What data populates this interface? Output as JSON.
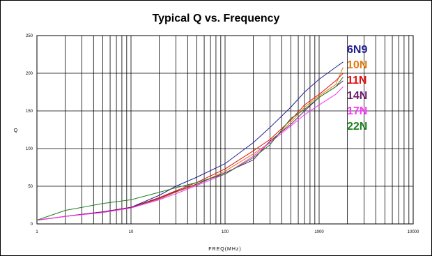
{
  "chart_data": {
    "type": "line",
    "title": "Typical Q vs. Frequency",
    "xlabel": "FREQ(MHz)",
    "ylabel": "Q",
    "x_scale": "log",
    "xlim": [
      1,
      10000
    ],
    "ylim": [
      0,
      250
    ],
    "x_tick_labels": [
      "1",
      "10",
      "100",
      "1000",
      "10000"
    ],
    "y_tick_labels": [
      "0",
      "50",
      "100",
      "150",
      "200",
      "250"
    ],
    "grid": true,
    "legend_placement": "top-right",
    "series": [
      {
        "name": "6N9",
        "color": "#1f1f8f",
        "x": [
          1,
          2,
          5,
          10,
          20,
          30,
          50,
          100,
          200,
          300,
          500,
          700,
          1000,
          1500,
          1800
        ],
        "y": [
          5,
          10,
          16,
          22,
          38,
          50,
          62,
          80,
          108,
          128,
          155,
          175,
          192,
          208,
          215
        ]
      },
      {
        "name": "10N",
        "color": "#e07a10",
        "x": [
          1,
          2,
          5,
          10,
          20,
          30,
          50,
          100,
          200,
          300,
          500,
          700,
          1000,
          1500,
          1800
        ],
        "y": [
          5,
          10,
          16,
          22,
          33,
          42,
          52,
          70,
          93,
          108,
          135,
          155,
          170,
          185,
          208
        ]
      },
      {
        "name": "11N",
        "color": "#e01010",
        "x": [
          1,
          2,
          5,
          10,
          20,
          30,
          50,
          100,
          200,
          300,
          500,
          700,
          1000,
          1500,
          1800
        ],
        "y": [
          5,
          10,
          16,
          22,
          35,
          44,
          55,
          73,
          97,
          112,
          138,
          158,
          172,
          190,
          200
        ]
      },
      {
        "name": "14N",
        "color": "#6a1f6a",
        "x": [
          1,
          2,
          5,
          10,
          20,
          30,
          50,
          100,
          200,
          300,
          500,
          700,
          1000,
          1500,
          1800
        ],
        "y": [
          5,
          10,
          16,
          22,
          34,
          43,
          53,
          68,
          85,
          110,
          132,
          150,
          168,
          182,
          190
        ]
      },
      {
        "name": "17N",
        "color": "#ff33ff",
        "x": [
          1,
          2,
          5,
          10,
          20,
          30,
          50,
          100,
          200,
          300,
          500,
          700,
          1000,
          1500,
          1800
        ],
        "y": [
          5,
          10,
          15,
          21,
          32,
          40,
          51,
          66,
          90,
          108,
          130,
          145,
          158,
          172,
          182
        ]
      },
      {
        "name": "22N",
        "color": "#1f7f1f",
        "x": [
          1,
          2,
          5,
          10,
          20,
          30,
          50,
          100,
          200,
          300,
          500,
          700,
          1000,
          1500,
          1800
        ],
        "y": [
          5,
          18,
          27,
          32,
          42,
          48,
          55,
          66,
          88,
          105,
          140,
          152,
          168,
          182,
          195
        ]
      }
    ]
  }
}
